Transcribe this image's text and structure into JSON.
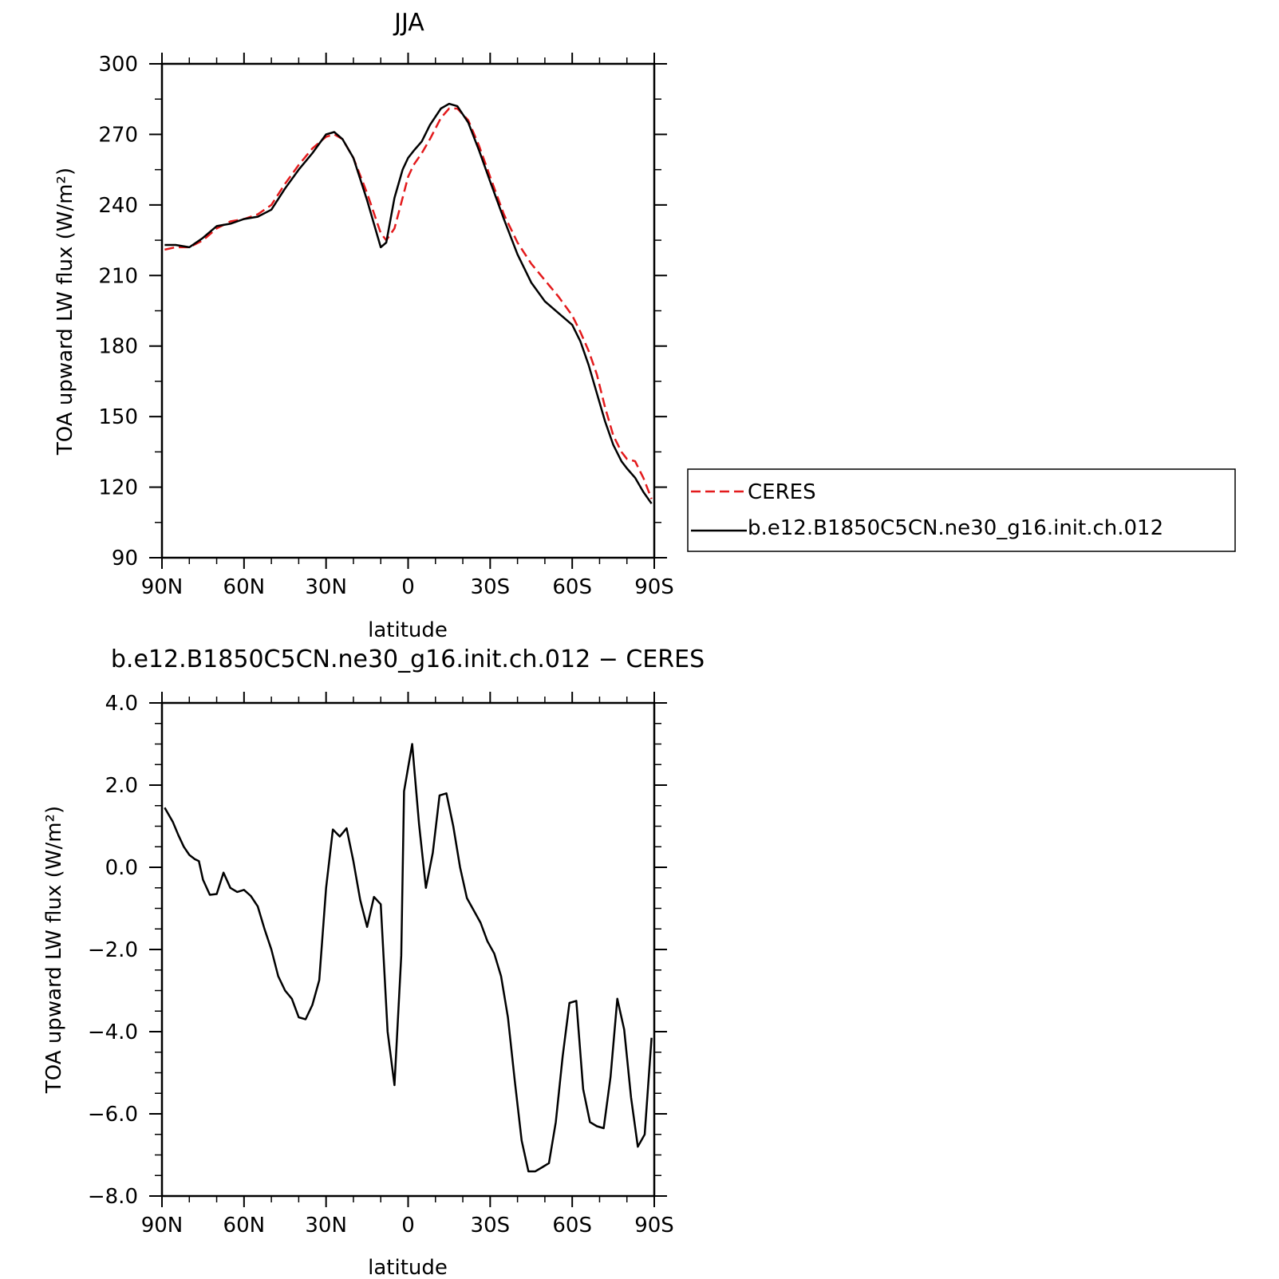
{
  "chart_data": [
    {
      "type": "line",
      "title": "JJA",
      "xlabel": "latitude",
      "ylabel": "TOA upward LW flux (W/m²)",
      "x_tick_labels": [
        "90N",
        "60N",
        "30N",
        "0",
        "30S",
        "60S",
        "90S"
      ],
      "x_tick_values": [
        90,
        60,
        30,
        0,
        -30,
        -60,
        -90
      ],
      "xlim": [
        90,
        -90
      ],
      "ylim": [
        90,
        300
      ],
      "y_ticks": [
        90,
        120,
        150,
        180,
        210,
        240,
        270,
        300
      ],
      "y_tick_labels": [
        "90",
        "120",
        "150",
        "180",
        "210",
        "240",
        "270",
        "300"
      ],
      "legend_position": "right",
      "series": [
        {
          "name": "CERES",
          "color": "#e31a1c",
          "dash": "dashed",
          "x": [
            89,
            85,
            80,
            75,
            70,
            65,
            60,
            55,
            50,
            45,
            40,
            35,
            30,
            27,
            24,
            20,
            15,
            10,
            8,
            5,
            2,
            0,
            -2,
            -5,
            -8,
            -12,
            -15,
            -18,
            -22,
            -26,
            -30,
            -35,
            -40,
            -45,
            -50,
            -55,
            -60,
            -63,
            -66,
            -69,
            -72,
            -75,
            -78,
            -80,
            -83,
            -86,
            -89
          ],
          "y": [
            221,
            222,
            222,
            225,
            230,
            233,
            234,
            236,
            240,
            249,
            257,
            264,
            269,
            270,
            268,
            260,
            245,
            228,
            225,
            230,
            243,
            252,
            257,
            262,
            268,
            277,
            281,
            281,
            276,
            265,
            252,
            236,
            224,
            215,
            208,
            201,
            193,
            186,
            178,
            168,
            154,
            142,
            135,
            132,
            131,
            124,
            115
          ]
        },
        {
          "name": "b.e12.B1850C5CN.ne30_g16.init.ch.012",
          "color": "#000000",
          "dash": "solid",
          "x": [
            89,
            85,
            80,
            75,
            70,
            65,
            60,
            55,
            50,
            45,
            40,
            35,
            30,
            27,
            24,
            20,
            15,
            10,
            8,
            5,
            2,
            0,
            -2,
            -5,
            -8,
            -12,
            -15,
            -18,
            -22,
            -26,
            -30,
            -35,
            -40,
            -45,
            -50,
            -55,
            -60,
            -63,
            -66,
            -69,
            -72,
            -75,
            -78,
            -80,
            -83,
            -86,
            -89
          ],
          "y": [
            223,
            223,
            222,
            226,
            231,
            232,
            234,
            235,
            238,
            247,
            255,
            262,
            270,
            271,
            268,
            260,
            242,
            222,
            224,
            243,
            255,
            260,
            263,
            267,
            274,
            281,
            283,
            282,
            275,
            263,
            250,
            234,
            219,
            207,
            199,
            194,
            189,
            182,
            172,
            160,
            148,
            138,
            131,
            128,
            124,
            118,
            113
          ]
        }
      ]
    },
    {
      "type": "line",
      "title": "b.e12.B1850C5CN.ne30_g16.init.ch.012 − CERES",
      "xlabel": "latitude",
      "ylabel": "TOA upward LW flux (W/m²)",
      "x_tick_labels": [
        "90N",
        "60N",
        "30N",
        "0",
        "30S",
        "60S",
        "90S"
      ],
      "x_tick_values": [
        90,
        60,
        30,
        0,
        -30,
        -60,
        -90
      ],
      "xlim": [
        90,
        -90
      ],
      "ylim": [
        -8,
        4
      ],
      "y_ticks": [
        -8,
        -6,
        -4,
        -2,
        0,
        2,
        4
      ],
      "y_tick_labels": [
        "−8.0",
        "−6.0",
        "−4.0",
        "−2.0",
        "0.0",
        "2.0",
        "4.0"
      ],
      "series": [
        {
          "name": "",
          "color": "#000000",
          "dash": "solid",
          "x": [
            89,
            86,
            84,
            82,
            80,
            78,
            76.5,
            75,
            72.5,
            70,
            67.5,
            65,
            62.5,
            60,
            57.5,
            55,
            52.5,
            50,
            47.5,
            45,
            42.5,
            40,
            37.5,
            35,
            32.5,
            30,
            27.5,
            25,
            22.5,
            20,
            17.5,
            15,
            12.5,
            10,
            7.5,
            5,
            2.5,
            1.5,
            -1.5,
            -4,
            -6.5,
            -9,
            -11.5,
            -14,
            -16.5,
            -19,
            -21.5,
            -24,
            -26.5,
            -29,
            -31.5,
            -34,
            -36.5,
            -39,
            -41.5,
            -44,
            -46.5,
            -49,
            -51.5,
            -54,
            -56.5,
            -59,
            -61.5,
            -64,
            -66.5,
            -69,
            -71.5,
            -74,
            -76.5,
            -79,
            -81.5,
            -84,
            -86.5,
            -89
          ],
          "y": [
            1.45,
            1.1,
            0.78,
            0.5,
            0.3,
            0.2,
            0.15,
            -0.3,
            -0.67,
            -0.65,
            -0.13,
            -0.5,
            -0.6,
            -0.55,
            -0.7,
            -0.95,
            -1.5,
            -2.0,
            -2.65,
            -3.0,
            -3.2,
            -3.65,
            -3.7,
            -3.35,
            -2.75,
            -0.5,
            0.92,
            0.75,
            0.95,
            0.15,
            -0.8,
            -1.45,
            -0.72,
            -0.9,
            -4.0,
            -5.3,
            -2.15,
            1.85,
            3.0,
            1.05,
            -0.5,
            0.35,
            1.75,
            1.8,
            1.0,
            0.0,
            -0.75,
            -1.05,
            -1.35,
            -1.8,
            -2.1,
            -2.65,
            -3.65,
            -5.2,
            -6.65,
            -7.4,
            -7.4,
            -7.3,
            -7.2,
            -6.2,
            -4.6,
            -3.3,
            -3.25,
            -5.4,
            -6.2,
            -6.3,
            -6.35,
            -5.1,
            -3.2,
            -3.95,
            -5.6,
            -6.8,
            -6.5,
            -4.15
          ]
        }
      ]
    }
  ]
}
